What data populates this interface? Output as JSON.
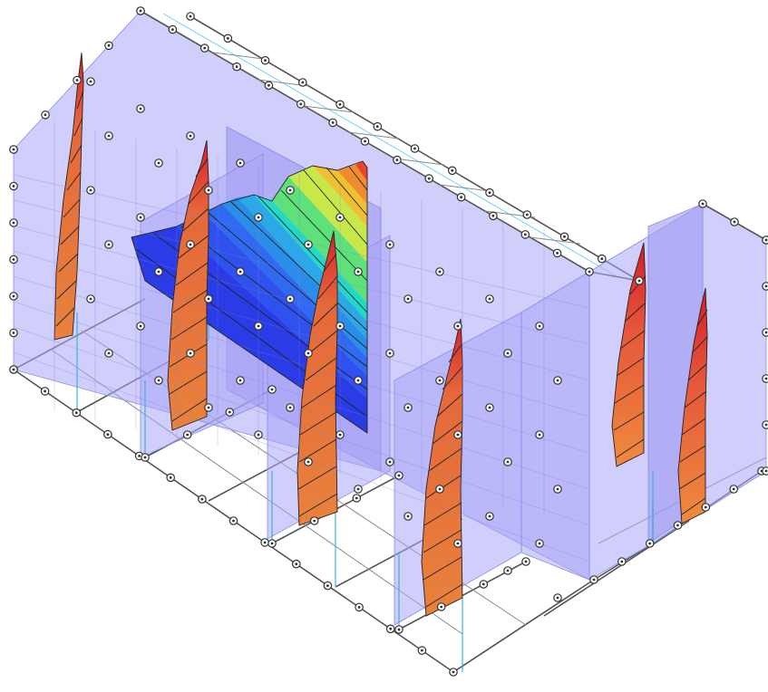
{
  "view": {
    "description_colors": {
      "background": "#ffffff",
      "wall_panel": "#a9a6f7",
      "frame_line": "#555555",
      "column_line": "#3bb3e0",
      "diagram_low": "#e8823c",
      "diagram_high": "#d81f2a",
      "contour_colors": [
        "#2a3ce6",
        "#2f6af0",
        "#2aa8e8",
        "#22d8c8",
        "#5ee07a",
        "#c8e84a",
        "#f0c030",
        "#f08c30",
        "#e8442a"
      ]
    },
    "icons": [
      "support-node-icon"
    ]
  }
}
